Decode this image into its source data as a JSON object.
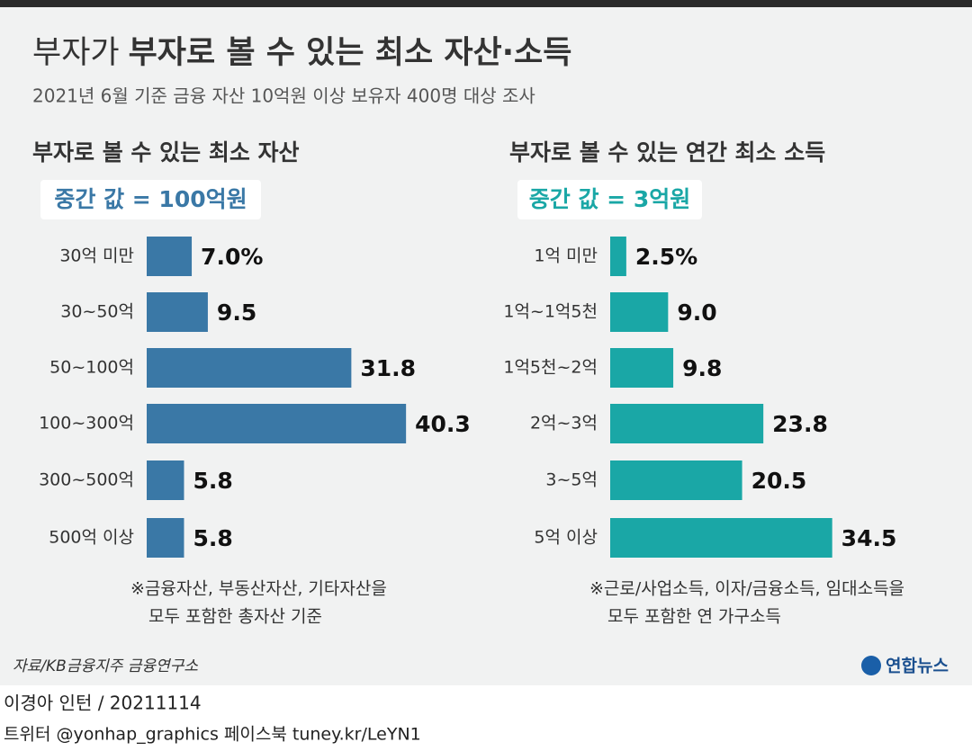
{
  "header": {
    "title_light": "부자가",
    "title_bold": "부자로 볼 수 있는 최소 자산·소득",
    "subtitle": "2021년 6월 기준 금융 자산 10억원 이상 보유자 400명 대상 조사"
  },
  "chart_data": [
    {
      "type": "bar",
      "orientation": "horizontal",
      "title": "부자로 볼 수 있는 최소 자산",
      "annotation": "중간 값 = 100억원",
      "color": "#3a78a6",
      "categories": [
        "30억 미만",
        "30~50억",
        "50~100억",
        "100~300억",
        "300~500억",
        "500억 이상"
      ],
      "values": [
        7.0,
        9.5,
        31.8,
        40.3,
        5.8,
        5.8
      ],
      "value_labels": [
        "7.0%",
        "9.5",
        "31.8",
        "40.3",
        "5.8",
        "5.8"
      ],
      "note": [
        "※금융자산, 부동산자산, 기타자산을",
        "모두 포함한 총자산 기준"
      ]
    },
    {
      "type": "bar",
      "orientation": "horizontal",
      "title": "부자로 볼 수 있는 연간 최소 소득",
      "annotation": "중간 값 = 3억원",
      "color": "#1aa7a6",
      "categories": [
        "1억 미만",
        "1억~1억5천",
        "1억5천~2억",
        "2억~3억",
        "3~5억",
        "5억 이상"
      ],
      "values": [
        2.5,
        9.0,
        9.8,
        23.8,
        20.5,
        34.5
      ],
      "value_labels": [
        "2.5%",
        "9.0",
        "9.8",
        "23.8",
        "20.5",
        "34.5"
      ],
      "note": [
        "※근로/사업소득, 이자/금융소득, 임대소득을",
        "모두 포함한 연 가구소득"
      ]
    }
  ],
  "footer": {
    "source": "자료/KB금융지주 금융연구소",
    "logo": "연합뉴스",
    "credit": "이경아 인턴 / 20211114",
    "links": "트위터 @yonhap_graphics  페이스북 tuney.kr/LeYN1"
  }
}
